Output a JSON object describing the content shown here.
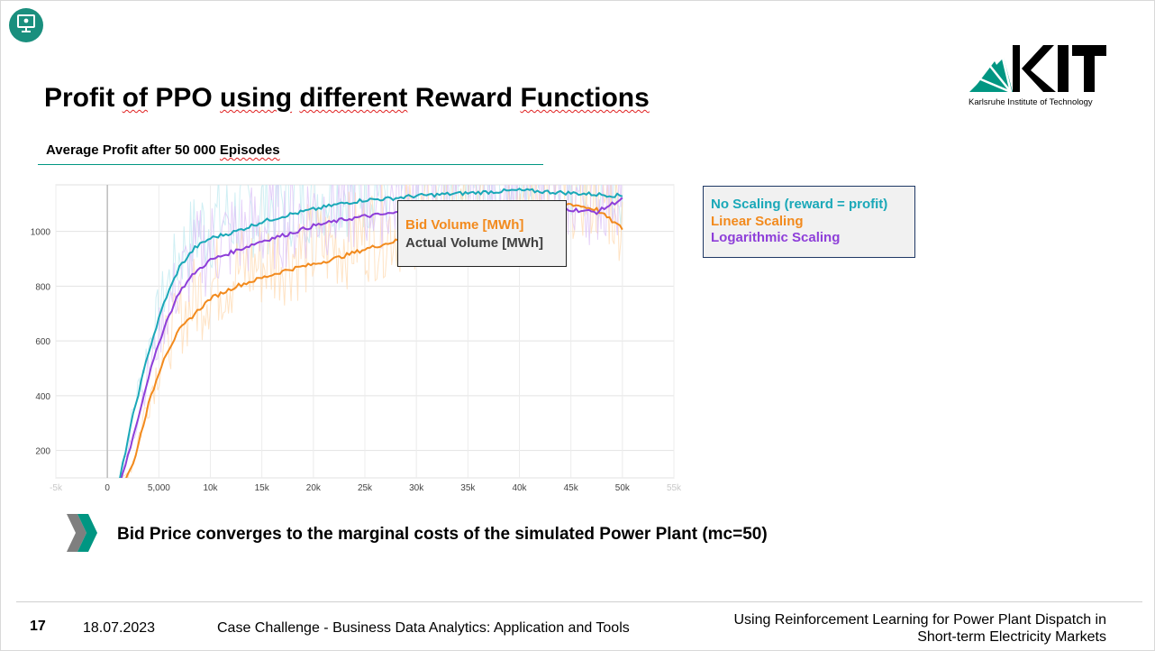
{
  "slide": {
    "title": "Profit of PPO using different Reward Functions",
    "subtitle": "Average Profit after 50 000 Episodes",
    "bullet": "Bid Price converges to the marginal costs of the simulated Power Plant (mc=50)"
  },
  "logo": {
    "text": "KIT",
    "subtext": "Karlsruhe Institute of Technology"
  },
  "legend": {
    "items": [
      {
        "label": "No Scaling (reward = profit)",
        "color": "#1aa8b8"
      },
      {
        "label": "Linear Scaling",
        "color": "#f28a1d"
      },
      {
        "label": "Logarithmic Scaling",
        "color": "#8e3fd9"
      }
    ]
  },
  "tooltip": {
    "items": [
      {
        "label": "Bid Volume [MWh]",
        "color": "#f28a1d"
      },
      {
        "label": "Actual Volume [MWh]",
        "color": "#404040"
      }
    ]
  },
  "footer": {
    "page": "17",
    "date": "18.07.2023",
    "course": "Case Challenge - Business Data Analytics: Application and Tools",
    "title_line1": "Using Reinforcement Learning for Power Plant Dispatch in",
    "title_line2": "Short-term Electricity Markets"
  },
  "colors": {
    "kit_green": "#009682",
    "teal": "#1aa8b8",
    "orange": "#f28a1d",
    "purple": "#8e3fd9"
  },
  "chart_data": {
    "type": "line",
    "title": "",
    "xlabel": "",
    "ylabel": "",
    "xlim": [
      -5000,
      55000
    ],
    "ylim": [
      100,
      1170
    ],
    "x_ticks": [
      -5000,
      0,
      5000,
      10000,
      15000,
      20000,
      25000,
      30000,
      35000,
      40000,
      45000,
      50000,
      55000
    ],
    "x_tick_labels": [
      "-5k",
      "0",
      "5,000",
      "10k",
      "15k",
      "20k",
      "25k",
      "30k",
      "35k",
      "40k",
      "45k",
      "50k",
      "55k"
    ],
    "y_ticks": [
      200,
      400,
      600,
      800,
      1000
    ],
    "y_tick_labels": [
      "200",
      "400",
      "600",
      "800",
      "1000"
    ],
    "grid": true,
    "series": [
      {
        "name": "No Scaling (reward = profit)",
        "color": "#1aa8b8",
        "x": [
          1000,
          2500,
          4000,
          5500,
          7000,
          8500,
          10000,
          12500,
          15000,
          17500,
          20000,
          22500,
          25000,
          27500,
          30000,
          32500,
          35000,
          37500,
          40000,
          42500,
          45000,
          47500,
          50000
        ],
        "y": [
          60,
          330,
          560,
          740,
          870,
          940,
          975,
          1000,
          1035,
          1060,
          1080,
          1100,
          1115,
          1120,
          1130,
          1135,
          1140,
          1145,
          1150,
          1145,
          1140,
          1135,
          1130
        ]
      },
      {
        "name": "Linear Scaling",
        "color": "#f28a1d",
        "x": [
          1000,
          2500,
          4000,
          5500,
          7000,
          8500,
          10000,
          12500,
          15000,
          17500,
          20000,
          22500,
          25000,
          27500,
          30000,
          32500,
          35000,
          37500,
          40000,
          42500,
          45000,
          47500,
          50000
        ],
        "y": [
          40,
          150,
          370,
          540,
          640,
          700,
          755,
          800,
          830,
          860,
          880,
          905,
          935,
          960,
          985,
          1010,
          1035,
          1060,
          1080,
          1095,
          1100,
          1080,
          1010
        ]
      },
      {
        "name": "Logarithmic Scaling",
        "color": "#8e3fd9",
        "x": [
          1000,
          2500,
          4000,
          5500,
          7000,
          8500,
          10000,
          12500,
          15000,
          17500,
          20000,
          22500,
          25000,
          27500,
          30000,
          32500,
          35000,
          37500,
          40000,
          42500,
          45000,
          47500,
          50000
        ],
        "y": [
          50,
          250,
          470,
          650,
          780,
          850,
          895,
          930,
          965,
          990,
          1020,
          1040,
          1055,
          1065,
          1075,
          1080,
          1085,
          1095,
          1100,
          1100,
          1080,
          1070,
          1120
        ]
      }
    ]
  }
}
